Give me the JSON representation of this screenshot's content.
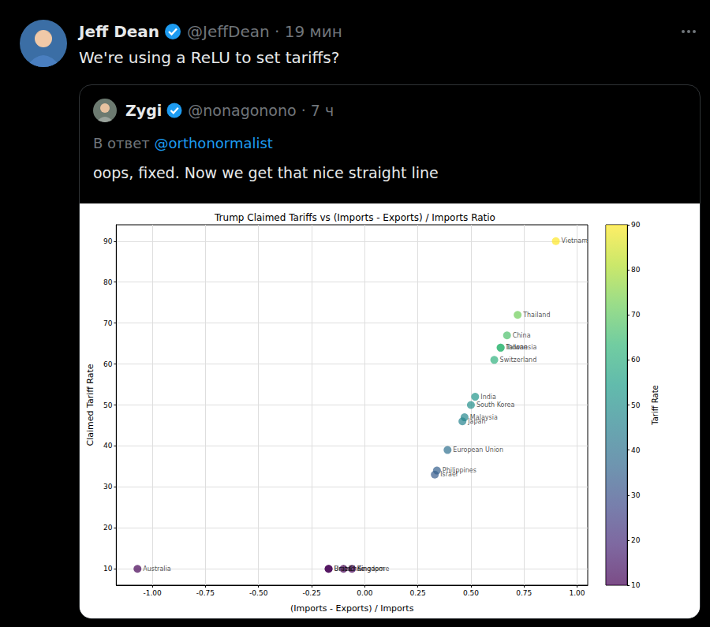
{
  "tweet": {
    "author": "Jeff Dean",
    "meta": "@JeffDean · 19 мин",
    "text": "We're using a ReLU to set tariffs?"
  },
  "quoted_tweet": {
    "author": "Zygi",
    "meta": "@nonagonono · 7 ч",
    "reply_prefix": "В ответ",
    "reply_to": "@orthonormalist",
    "text": "oops, fixed. Now we get that nice straight line"
  },
  "chart_data": {
    "type": "scatter",
    "title": "Trump Claimed Tariffs vs (Imports - Exports) / Imports Ratio",
    "x_label": "(Imports - Exports) / Imports",
    "y_label": "Claimed Tariff Rate",
    "labels": [
      "Australia",
      "United Kingdom",
      "Brazil",
      "Chile",
      "Singapore",
      "Israel",
      "Philippines",
      "European Union",
      "Japan",
      "Malaysia",
      "South Korea",
      "India",
      "Switzerland",
      "Taiwan",
      "Indonesia",
      "China",
      "Thailand",
      "Vietnam"
    ],
    "x": [
      -1.07,
      -0.17,
      -0.17,
      -0.1,
      -0.06,
      0.33,
      0.34,
      0.39,
      0.46,
      0.47,
      0.5,
      0.52,
      0.61,
      0.64,
      0.64,
      0.67,
      0.72,
      0.9
    ],
    "values": [
      10,
      10,
      10,
      10,
      10,
      33,
      34,
      39,
      46,
      47,
      50,
      52,
      61,
      64,
      64,
      67,
      72,
      90
    ],
    "color": "viridis",
    "xlim": [
      -1.17,
      1.05
    ],
    "xticks": [
      {
        "value": -1,
        "label": "-1.00"
      },
      {
        "value": -0.75,
        "label": "-0.75"
      },
      {
        "value": -0.5,
        "label": "-0.50"
      },
      {
        "value": -0.25,
        "label": "-0.25"
      },
      {
        "value": 0,
        "label": "0.00"
      },
      {
        "value": 0.25,
        "label": "0.25"
      },
      {
        "value": 0.5,
        "label": "0.50"
      },
      {
        "value": 0.75,
        "label": "0.75"
      },
      {
        "value": 1,
        "label": "1.00"
      }
    ],
    "ylim": [
      6,
      94
    ],
    "yticks": [
      10,
      20,
      30,
      40,
      50,
      60,
      70,
      80,
      90
    ],
    "colorbar": {
      "label": "Tariff Rate",
      "lim": [
        10,
        90
      ],
      "ticks": [
        10,
        20,
        30,
        40,
        50,
        60,
        70,
        80,
        90
      ]
    },
    "grid": true
  }
}
